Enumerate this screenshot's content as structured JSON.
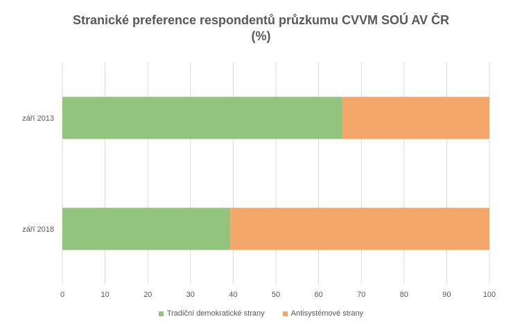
{
  "chart_data": {
    "type": "bar",
    "orientation": "horizontal",
    "stacked": true,
    "title_lines": [
      "Stranické preference respondentů průzkumu CVVM SOÚ AV ČR",
      "(%)"
    ],
    "categories": [
      "září 2013",
      "září 2018"
    ],
    "series": [
      {
        "name": "Tradiční demokratické strany",
        "color": "#93c47d",
        "values": [
          65.5,
          39.3
        ]
      },
      {
        "name": "Antisystémové strany",
        "color": "#f4a76a",
        "values": [
          34.5,
          60.7
        ]
      }
    ],
    "x_ticks": [
      "0",
      "10",
      "20",
      "30",
      "40",
      "50",
      "60",
      "70",
      "80",
      "90",
      "100"
    ],
    "xlim": [
      0,
      100
    ],
    "grid": "vertical",
    "legend_position": "bottom"
  }
}
